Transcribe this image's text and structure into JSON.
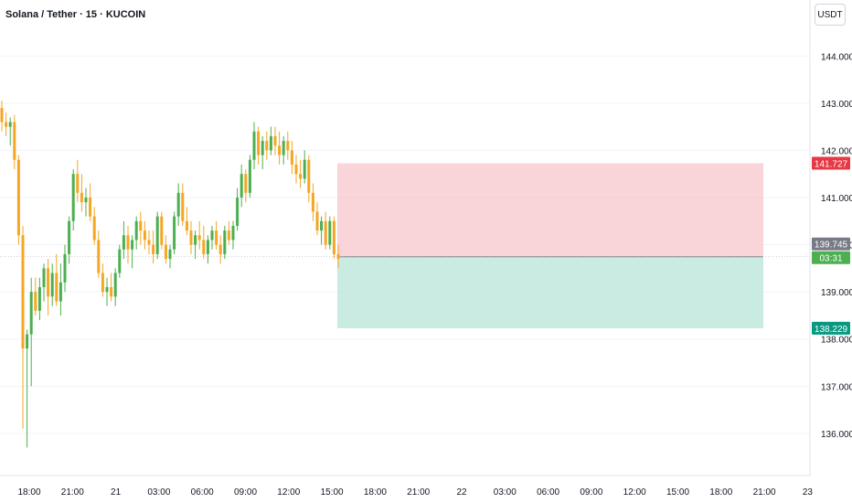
{
  "header": {
    "symbol_title": "Solana / Tether · 15 · KUCOIN",
    "currency_label": "USDT"
  },
  "price_tags": {
    "stop": "141.727",
    "current": "139.745",
    "countdown": "03:31",
    "target": "138.229"
  },
  "colors": {
    "up": "#4caf50",
    "down": "#f5a623",
    "stop_zone": "#f7c5cb",
    "target_zone": "#b8e4d8",
    "stop_tag": "#e53945",
    "current_tag": "#787b86",
    "countdown_tag": "#4caf50",
    "target_tag": "#089981"
  },
  "chart_data": {
    "type": "candlestick",
    "ylim": [
      135.3,
      144.8
    ],
    "y_ticks": [
      "136.000",
      "137.000",
      "138.000",
      "139.000",
      "140.000",
      "141.000",
      "142.000",
      "143.000",
      "144.000"
    ],
    "x_ticks": [
      "18:00",
      "21:00",
      "21",
      "03:00",
      "06:00",
      "09:00",
      "12:00",
      "15:00",
      "18:00",
      "21:00",
      "22",
      "03:00",
      "06:00",
      "09:00",
      "12:00",
      "15:00",
      "18:00",
      "21:00",
      "23"
    ],
    "position": {
      "type": "short",
      "entry": 139.745,
      "stop": 141.727,
      "target": 138.229
    },
    "candles": [
      [
        142.9,
        143.05,
        142.4,
        142.6
      ],
      [
        142.6,
        142.8,
        142.3,
        142.5
      ],
      [
        142.5,
        142.7,
        142.1,
        142.6
      ],
      [
        142.6,
        142.75,
        141.6,
        141.8
      ],
      [
        141.8,
        141.9,
        140.0,
        140.2
      ],
      [
        140.2,
        140.4,
        136.1,
        137.8
      ],
      [
        137.8,
        138.2,
        135.7,
        138.1
      ],
      [
        138.1,
        139.3,
        137.0,
        139.0
      ],
      [
        139.0,
        139.3,
        138.5,
        138.6
      ],
      [
        138.6,
        139.3,
        138.4,
        139.1
      ],
      [
        139.1,
        139.6,
        138.8,
        139.5
      ],
      [
        139.5,
        139.7,
        138.5,
        138.9
      ],
      [
        138.9,
        139.6,
        138.7,
        139.4
      ],
      [
        139.4,
        139.8,
        138.7,
        138.8
      ],
      [
        138.8,
        139.6,
        138.5,
        139.2
      ],
      [
        139.2,
        140.0,
        139.0,
        139.8
      ],
      [
        139.8,
        140.6,
        139.6,
        140.5
      ],
      [
        140.5,
        141.6,
        140.3,
        141.5
      ],
      [
        141.5,
        141.8,
        140.9,
        141.1
      ],
      [
        141.1,
        141.5,
        140.7,
        140.9
      ],
      [
        140.9,
        141.2,
        140.6,
        141.0
      ],
      [
        141.0,
        141.3,
        140.5,
        140.6
      ],
      [
        140.6,
        140.8,
        140.0,
        140.1
      ],
      [
        140.1,
        140.3,
        139.3,
        139.4
      ],
      [
        139.4,
        139.6,
        138.9,
        139.0
      ],
      [
        139.0,
        139.3,
        138.7,
        139.1
      ],
      [
        139.1,
        139.4,
        138.8,
        138.9
      ],
      [
        138.9,
        139.5,
        138.7,
        139.4
      ],
      [
        139.4,
        140.0,
        139.3,
        139.9
      ],
      [
        139.9,
        140.5,
        139.7,
        140.2
      ],
      [
        140.2,
        140.4,
        139.6,
        139.9
      ],
      [
        139.9,
        140.2,
        139.5,
        140.1
      ],
      [
        140.1,
        140.6,
        139.9,
        140.5
      ],
      [
        140.5,
        140.7,
        140.0,
        140.3
      ],
      [
        140.3,
        140.5,
        139.9,
        140.1
      ],
      [
        140.1,
        140.3,
        139.8,
        140.0
      ],
      [
        140.0,
        140.3,
        139.6,
        139.8
      ],
      [
        139.8,
        140.7,
        139.7,
        140.6
      ],
      [
        140.6,
        140.7,
        139.9,
        140.0
      ],
      [
        140.0,
        140.2,
        139.6,
        139.7
      ],
      [
        139.7,
        140.0,
        139.5,
        139.9
      ],
      [
        139.9,
        140.7,
        139.8,
        140.6
      ],
      [
        140.6,
        141.3,
        140.4,
        141.1
      ],
      [
        141.1,
        141.3,
        140.4,
        140.5
      ],
      [
        140.5,
        140.8,
        140.2,
        140.3
      ],
      [
        140.3,
        140.5,
        139.8,
        140.0
      ],
      [
        140.0,
        140.3,
        139.7,
        140.2
      ],
      [
        140.2,
        140.5,
        139.9,
        140.1
      ],
      [
        140.1,
        140.4,
        139.7,
        139.8
      ],
      [
        139.8,
        140.2,
        139.6,
        140.1
      ],
      [
        140.1,
        140.4,
        139.9,
        140.3
      ],
      [
        140.3,
        140.5,
        139.9,
        140.0
      ],
      [
        140.0,
        140.2,
        139.6,
        139.8
      ],
      [
        139.8,
        140.4,
        139.7,
        140.3
      ],
      [
        140.3,
        140.5,
        140.0,
        140.1
      ],
      [
        140.1,
        140.5,
        139.9,
        140.4
      ],
      [
        140.4,
        141.2,
        140.3,
        141.0
      ],
      [
        141.0,
        141.7,
        140.8,
        141.5
      ],
      [
        141.5,
        141.6,
        140.9,
        141.1
      ],
      [
        141.1,
        141.9,
        141.0,
        141.8
      ],
      [
        141.8,
        142.6,
        141.6,
        142.4
      ],
      [
        142.4,
        142.5,
        141.7,
        141.9
      ],
      [
        141.9,
        142.3,
        141.6,
        142.2
      ],
      [
        142.2,
        142.4,
        141.8,
        142.0
      ],
      [
        142.0,
        142.5,
        141.9,
        142.3
      ],
      [
        142.3,
        142.5,
        141.9,
        142.1
      ],
      [
        142.1,
        142.4,
        141.7,
        141.9
      ],
      [
        141.9,
        142.3,
        141.7,
        142.2
      ],
      [
        142.2,
        142.4,
        141.8,
        142.0
      ],
      [
        142.0,
        142.2,
        141.5,
        141.7
      ],
      [
        141.7,
        141.9,
        141.3,
        141.5
      ],
      [
        141.5,
        141.8,
        141.2,
        141.4
      ],
      [
        141.4,
        142.0,
        141.3,
        141.8
      ],
      [
        141.8,
        141.9,
        140.9,
        141.1
      ],
      [
        141.1,
        141.3,
        140.5,
        140.7
      ],
      [
        140.7,
        140.9,
        140.2,
        140.3
      ],
      [
        140.3,
        140.6,
        140.0,
        140.5
      ],
      [
        140.5,
        140.7,
        139.9,
        140.0
      ],
      [
        140.0,
        140.6,
        139.9,
        140.5
      ],
      [
        140.5,
        140.6,
        139.7,
        139.8
      ],
      [
        139.8,
        140.0,
        139.5,
        139.7
      ]
    ]
  }
}
